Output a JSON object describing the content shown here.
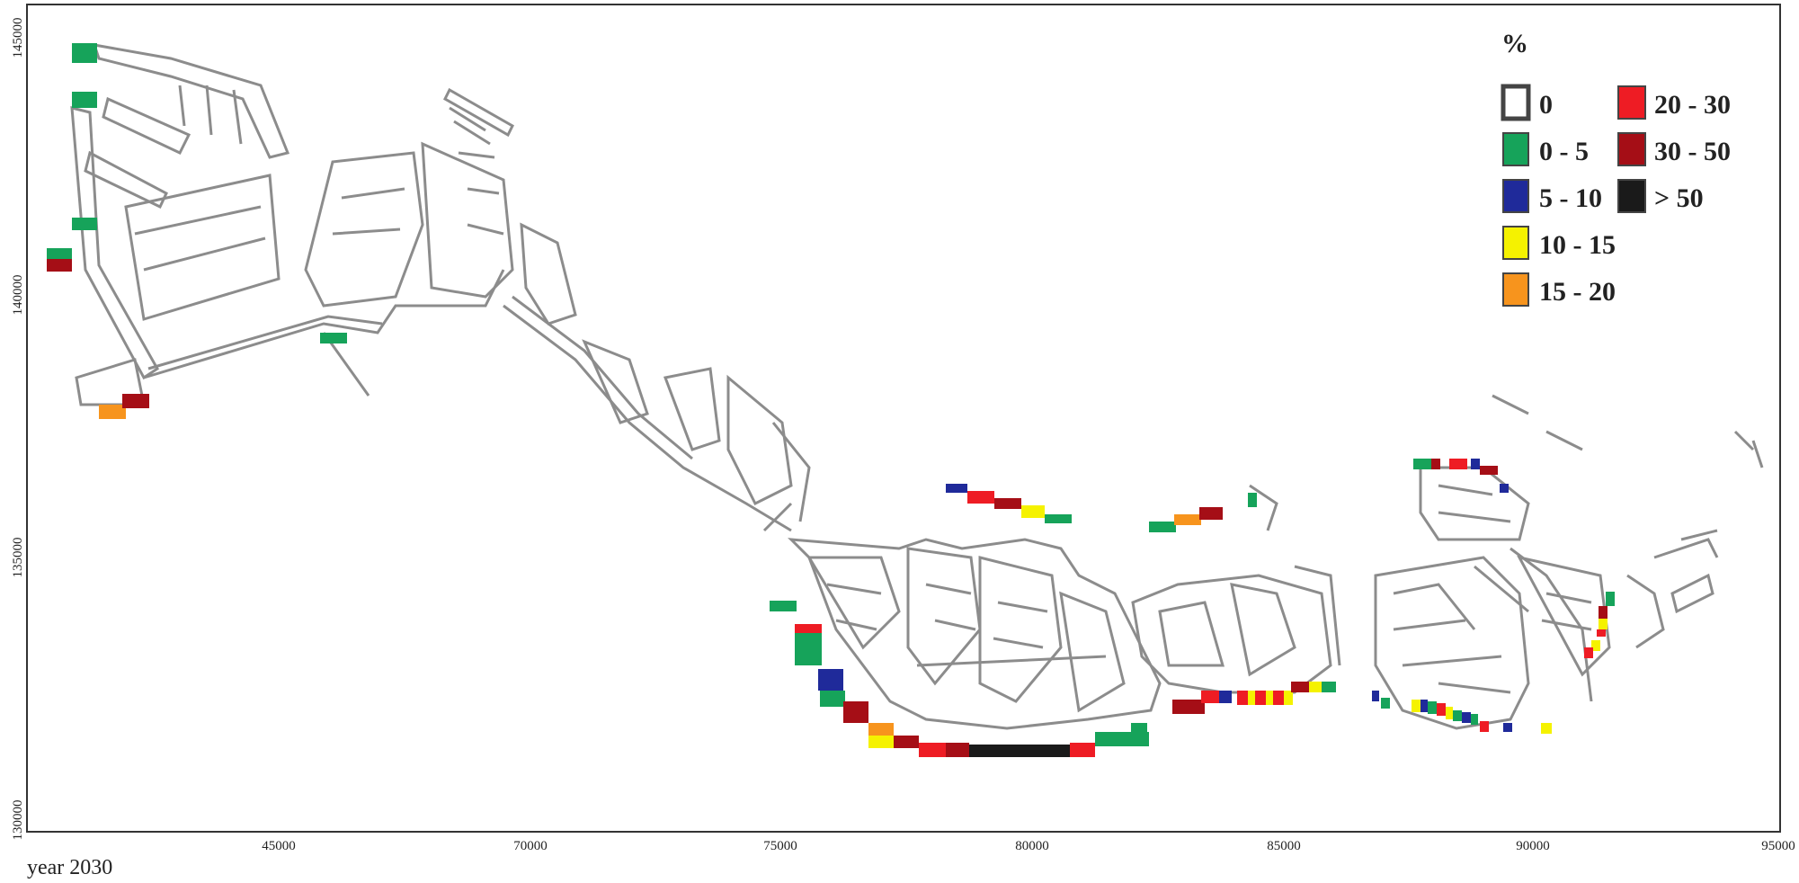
{
  "legend": {
    "title": "%",
    "classes": [
      {
        "label": "0",
        "color": "#ffffff"
      },
      {
        "label": "0 - 5",
        "color": "#16a35a"
      },
      {
        "label": "5 - 10",
        "color": "#1f2a9a"
      },
      {
        "label": "10 - 15",
        "color": "#f5f200"
      },
      {
        "label": "15 - 20",
        "color": "#f7941d"
      },
      {
        "label": "20 - 30",
        "color": "#ee1c24"
      },
      {
        "label": "30 - 50",
        "color": "#a50e16"
      },
      {
        "label": "> 50",
        "color": "#1a1a1a"
      }
    ]
  },
  "axes": {
    "x_ticks": [
      "45000",
      "70000",
      "75000",
      "80000",
      "85000",
      "90000",
      "95000"
    ],
    "y_ticks": [
      "145000",
      "140000",
      "135000",
      "130000"
    ]
  },
  "caption": "year 2030"
}
